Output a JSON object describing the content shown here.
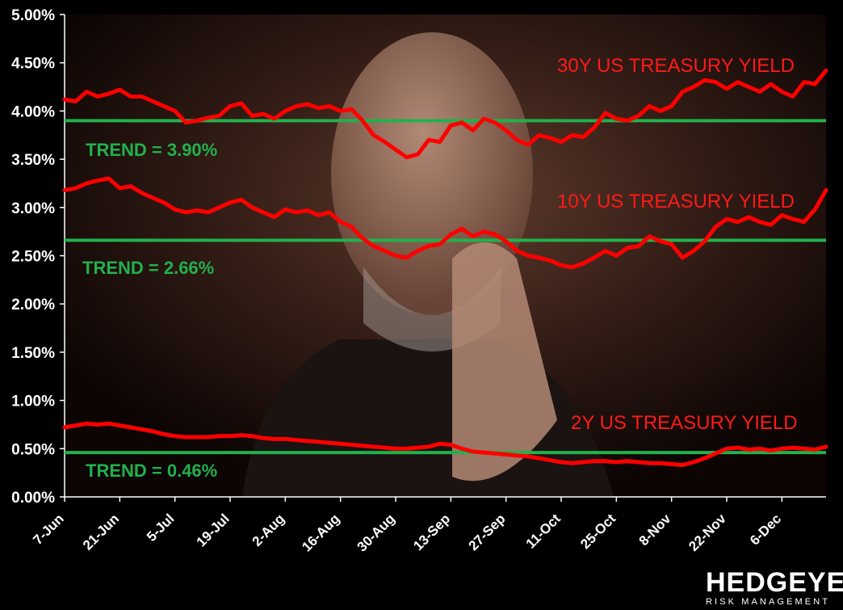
{
  "chart_data": {
    "type": "line",
    "title": "",
    "xlabel": "",
    "ylabel": "",
    "ylim": [
      0,
      0.05
    ],
    "y_ticks": [
      "0.00%",
      "0.50%",
      "1.00%",
      "1.50%",
      "2.00%",
      "2.50%",
      "3.00%",
      "3.50%",
      "4.00%",
      "4.50%",
      "5.00%"
    ],
    "x_ticks": [
      "7-Jun",
      "21-Jun",
      "5-Jul",
      "19-Jul",
      "2-Aug",
      "16-Aug",
      "30-Aug",
      "13-Sep",
      "27-Sep",
      "11-Oct",
      "25-Oct",
      "8-Nov",
      "22-Nov",
      "6-Dec"
    ],
    "grid": false,
    "series": [
      {
        "name": "30Y US TREASURY YIELD",
        "color": "#ff0000",
        "values": [
          4.12,
          4.1,
          4.2,
          4.15,
          4.18,
          4.22,
          4.15,
          4.15,
          4.1,
          4.05,
          4.0,
          3.88,
          3.9,
          3.93,
          3.95,
          4.05,
          4.08,
          3.95,
          3.97,
          3.92,
          4.0,
          4.05,
          4.07,
          4.03,
          4.05,
          4.0,
          4.02,
          3.9,
          3.75,
          3.68,
          3.6,
          3.52,
          3.55,
          3.7,
          3.68,
          3.85,
          3.88,
          3.8,
          3.92,
          3.88,
          3.8,
          3.7,
          3.65,
          3.75,
          3.72,
          3.68,
          3.75,
          3.73,
          3.83,
          3.98,
          3.92,
          3.9,
          3.95,
          4.05,
          4.0,
          4.05,
          4.2,
          4.25,
          4.32,
          4.3,
          4.23,
          4.3,
          4.25,
          4.2,
          4.28,
          4.2,
          4.15,
          4.3,
          4.28,
          4.42
        ]
      },
      {
        "name": "10Y US TREASURY YIELD",
        "color": "#ff0000",
        "values": [
          3.18,
          3.2,
          3.25,
          3.28,
          3.3,
          3.2,
          3.22,
          3.15,
          3.1,
          3.05,
          2.98,
          2.95,
          2.97,
          2.95,
          3.0,
          3.05,
          3.08,
          3.0,
          2.95,
          2.9,
          2.98,
          2.95,
          2.97,
          2.92,
          2.95,
          2.85,
          2.8,
          2.68,
          2.6,
          2.55,
          2.5,
          2.48,
          2.55,
          2.6,
          2.62,
          2.72,
          2.78,
          2.7,
          2.75,
          2.72,
          2.65,
          2.55,
          2.5,
          2.48,
          2.45,
          2.4,
          2.38,
          2.42,
          2.48,
          2.55,
          2.5,
          2.58,
          2.6,
          2.7,
          2.65,
          2.62,
          2.48,
          2.55,
          2.65,
          2.8,
          2.88,
          2.85,
          2.9,
          2.85,
          2.82,
          2.92,
          2.88,
          2.85,
          2.98,
          3.18
        ]
      },
      {
        "name": "2Y US TREASURY YIELD",
        "color": "#ff0000",
        "values": [
          0.72,
          0.74,
          0.76,
          0.75,
          0.76,
          0.74,
          0.72,
          0.7,
          0.68,
          0.65,
          0.63,
          0.62,
          0.62,
          0.62,
          0.63,
          0.63,
          0.64,
          0.63,
          0.61,
          0.6,
          0.6,
          0.59,
          0.58,
          0.57,
          0.56,
          0.55,
          0.54,
          0.53,
          0.52,
          0.51,
          0.5,
          0.5,
          0.51,
          0.52,
          0.55,
          0.54,
          0.5,
          0.47,
          0.46,
          0.45,
          0.44,
          0.43,
          0.42,
          0.4,
          0.38,
          0.36,
          0.35,
          0.36,
          0.37,
          0.37,
          0.36,
          0.37,
          0.36,
          0.35,
          0.35,
          0.34,
          0.33,
          0.36,
          0.4,
          0.45,
          0.5,
          0.51,
          0.49,
          0.5,
          0.48,
          0.5,
          0.51,
          0.5,
          0.49,
          0.52
        ]
      }
    ],
    "trend_lines": [
      {
        "label": "TREND = 3.90%",
        "value": 3.9,
        "color": "#22b14c"
      },
      {
        "label": "TREND = 2.66%",
        "value": 2.66,
        "color": "#22b14c"
      },
      {
        "label": "TREND = 0.46%",
        "value": 0.46,
        "color": "#22b14c"
      }
    ]
  },
  "logo": {
    "name": "HEDGEYE",
    "tagline": "RISK MANAGEMENT"
  }
}
